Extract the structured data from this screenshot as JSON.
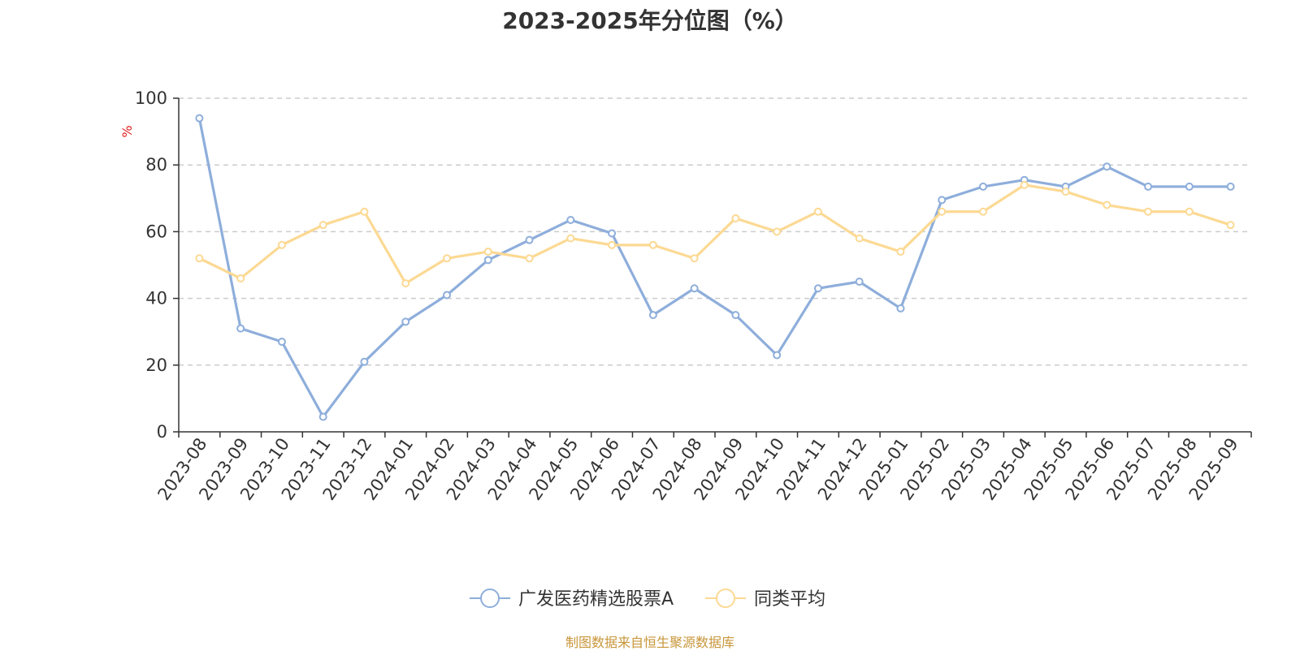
{
  "chart_data": {
    "type": "line",
    "title": "2023-2025年分位图（%）",
    "ylabel": "%",
    "xlabel": "",
    "ylim": [
      0,
      100
    ],
    "yticks": [
      0,
      20,
      40,
      60,
      80,
      100
    ],
    "grid": true,
    "legend_position": "bottom",
    "categories": [
      "2023-08",
      "2023-09",
      "2023-10",
      "2023-11",
      "2023-12",
      "2024-01",
      "2024-02",
      "2024-03",
      "2024-04",
      "2024-05",
      "2024-06",
      "2024-07",
      "2024-08",
      "2024-09",
      "2024-10",
      "2024-11",
      "2024-12",
      "2025-01",
      "2025-02",
      "2025-03",
      "2025-04",
      "2025-05",
      "2025-06",
      "2025-07",
      "2025-08",
      "2025-09"
    ],
    "series": [
      {
        "name": "广发医药精选股票A",
        "color": "#8eaedb",
        "values": [
          94,
          31,
          27,
          4.5,
          21,
          33,
          41,
          51.5,
          57.5,
          63.5,
          59.5,
          35,
          43,
          35,
          23,
          43,
          45,
          37,
          69.5,
          73.5,
          75.5,
          73.5,
          79.5,
          73.5,
          73.5,
          73.5
        ]
      },
      {
        "name": "同类平均",
        "color": "#fcd993",
        "values": [
          52,
          46,
          56,
          62,
          66,
          44.5,
          52,
          54,
          52,
          58,
          56,
          56,
          52,
          64,
          60,
          66,
          58,
          54,
          66,
          66,
          74,
          72,
          68,
          66,
          66,
          62
        ]
      }
    ]
  },
  "source_text": "制图数据来自恒生聚源数据库",
  "colors": {
    "axis": "#333333",
    "grid": "#cccccc",
    "ylabel": "#e02020",
    "source": "#c8963a"
  }
}
